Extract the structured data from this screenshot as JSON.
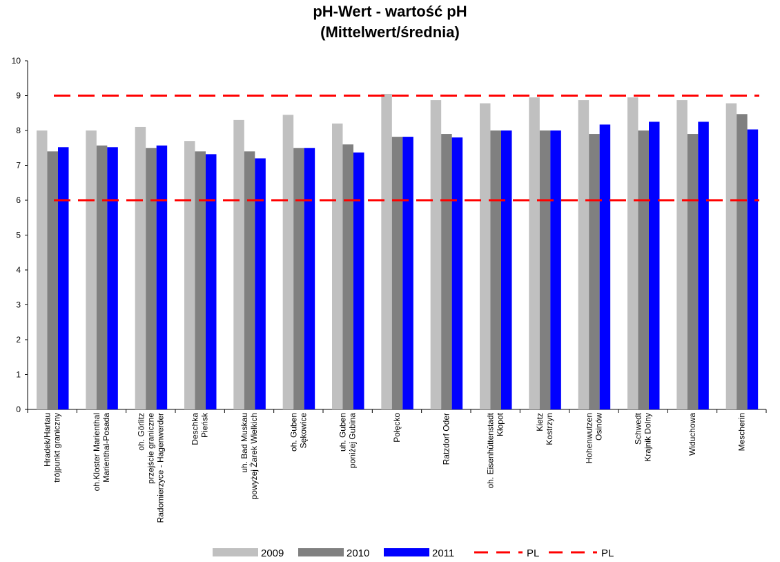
{
  "chart_data": {
    "type": "bar",
    "title_line1": "pH-Wert - wartość pH",
    "title_line2": "(Mittelwert/średnia)",
    "ylim": [
      0,
      10
    ],
    "yticks": [
      0,
      1,
      2,
      3,
      4,
      5,
      6,
      7,
      8,
      9,
      10
    ],
    "categories": [
      [
        "Hradek/Hartau",
        "trójpunkt graniczny"
      ],
      [
        "oh.Kloster Marienthal",
        "Marienthal-Posada"
      ],
      [
        "oh. Görlitz",
        "przejście graniczne",
        "Radomierzyce - Hagenwerder"
      ],
      [
        "Deschka",
        "Pieńsk"
      ],
      [
        "uh. Bad Muskau",
        "powyżej Żarek Wielkich"
      ],
      [
        "oh. Guben",
        "Sękowice"
      ],
      [
        "uh. Guben",
        "poniżej Gubina"
      ],
      [
        "Połęcko"
      ],
      [
        "Ratzdorf Oder"
      ],
      [
        "oh. Eisenhüttenstadt",
        "Kłopot"
      ],
      [
        "Kietz",
        "Kostrzyn"
      ],
      [
        "Hohenwutzen",
        "Osinów"
      ],
      [
        "Schwedt",
        "Krajnik Dolny"
      ],
      [
        "Widuchowa"
      ],
      [
        "Mescherin"
      ]
    ],
    "series": [
      {
        "name": "2009",
        "color": "#c0c0c0",
        "values": [
          8.0,
          8.0,
          8.1,
          7.7,
          8.3,
          8.45,
          8.2,
          9.05,
          8.87,
          8.78,
          8.95,
          8.87,
          8.95,
          8.87,
          8.78
        ]
      },
      {
        "name": "2010",
        "color": "#808080",
        "values": [
          7.4,
          7.57,
          7.5,
          7.4,
          7.4,
          7.5,
          7.6,
          7.82,
          7.9,
          8.0,
          8.0,
          7.9,
          8.0,
          7.9,
          8.47
        ]
      },
      {
        "name": "2011",
        "color": "#0000ff",
        "values": [
          7.52,
          7.52,
          7.57,
          7.32,
          7.2,
          7.5,
          7.37,
          7.82,
          7.8,
          8.0,
          8.0,
          8.17,
          8.25,
          8.25,
          8.03
        ]
      }
    ],
    "limit_lines": [
      {
        "name": "PL",
        "value": 9,
        "color": "#ff0000",
        "style": "dashed"
      },
      {
        "name": "PL",
        "value": 6,
        "color": "#ff0000",
        "style": "dashed"
      }
    ],
    "legend_position": "bottom",
    "grid": false
  }
}
